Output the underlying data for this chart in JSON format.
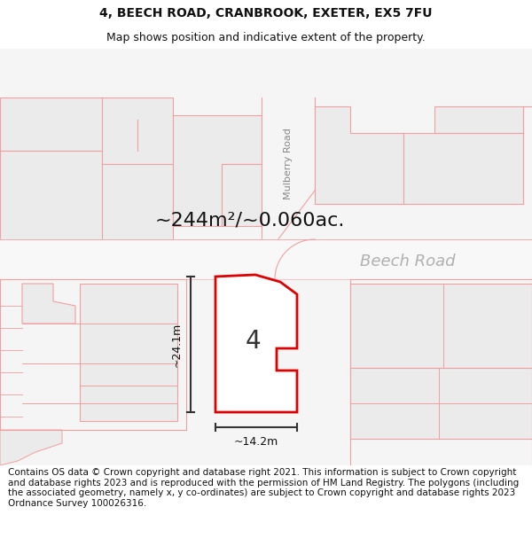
{
  "title_line1": "4, BEECH ROAD, CRANBROOK, EXETER, EX5 7FU",
  "title_line2": "Map shows position and indicative extent of the property.",
  "footer_lines": [
    "Contains OS data © Crown copyright and database right 2021. This information is subject to Crown copyright and database rights 2023 and is reproduced with the permission of",
    "HM Land Registry. The polygons (including the associated geometry, namely x, y co-ordinates) are subject to Crown copyright and database rights 2023 Ordnance Survey 100026316."
  ],
  "area_text": "~244m²/~0.060ac.",
  "measurement_width": "~14.2m",
  "measurement_height": "~24.1m",
  "road_label_beech": "Beech Road",
  "road_label_mulberry": "Mulberry Road",
  "number_label": "4",
  "bg_color": "#ffffff",
  "building_fill": "#e8e8e8",
  "building_edge": "#f0a0a0",
  "plot_fill": "#ffffff",
  "plot_stroke": "#dd0000",
  "dim_color": "#333333",
  "road_label_color": "#b0b0b0",
  "mulberry_label_color": "#888888",
  "title_fontsize": 10,
  "subtitle_fontsize": 9,
  "area_fontsize": 16,
  "footer_fontsize": 7.5,
  "number_fontsize": 20
}
